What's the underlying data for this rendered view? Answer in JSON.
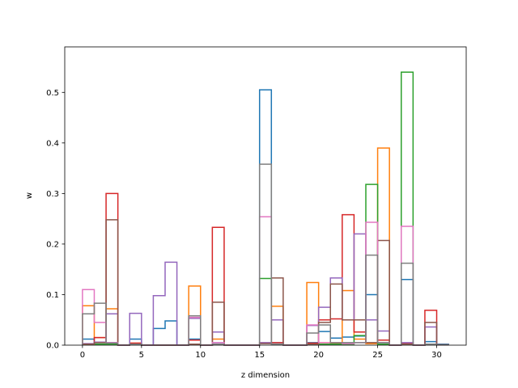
{
  "chart_data": {
    "type": "step",
    "title": "",
    "xlabel": "z dimension",
    "ylabel": "w",
    "xlim": [
      -1.5,
      32.5
    ],
    "ylim": [
      0,
      0.59
    ],
    "xticks": [
      0,
      5,
      10,
      15,
      20,
      25,
      30
    ],
    "yticks": [
      0.0,
      0.1,
      0.2,
      0.3,
      0.4,
      0.5
    ],
    "bin_edges": [
      0,
      1,
      2,
      3,
      4,
      5,
      6,
      7,
      8,
      9,
      10,
      11,
      12,
      13,
      14,
      15,
      16,
      17,
      18,
      19,
      20,
      21,
      22,
      23,
      24,
      25,
      26,
      27,
      28,
      29,
      30,
      31
    ],
    "series": [
      {
        "color": "#1f77b4",
        "values": [
          0.012,
          0.005,
          0.005,
          0,
          0.012,
          0,
          0.033,
          0.048,
          0,
          0.012,
          0,
          0.005,
          0,
          0,
          0,
          0.505,
          0.005,
          0,
          0,
          0.005,
          0.027,
          0.014,
          0.016,
          0.018,
          0.1,
          0.005,
          0,
          0.13,
          0,
          0.007,
          0.002
        ]
      },
      {
        "color": "#ff7f0e",
        "values": [
          0.078,
          0.015,
          0.072,
          0,
          0.004,
          0,
          0,
          0,
          0,
          0.117,
          0,
          0.012,
          0,
          0,
          0,
          0.005,
          0.077,
          0,
          0,
          0.124,
          0.005,
          0.004,
          0.108,
          0.012,
          0.003,
          0.39,
          0,
          0.002,
          0,
          0.002,
          0.001
        ]
      },
      {
        "color": "#2ca02c",
        "values": [
          0.002,
          0.002,
          0.002,
          0,
          0.002,
          0,
          0,
          0,
          0,
          0.002,
          0,
          0.002,
          0,
          0,
          0,
          0.132,
          0.002,
          0,
          0,
          0.002,
          0.002,
          0.002,
          0.002,
          0.019,
          0.318,
          0.002,
          0,
          0.54,
          0,
          0.002,
          0.001
        ]
      },
      {
        "color": "#d62728",
        "values": [
          0.002,
          0.015,
          0.3,
          0,
          0.004,
          0,
          0,
          0,
          0,
          0.01,
          0,
          0.233,
          0,
          0,
          0,
          0.004,
          0.005,
          0,
          0,
          0.004,
          0.05,
          0.052,
          0.258,
          0.026,
          0.05,
          0.01,
          0,
          0.004,
          0,
          0.069,
          0.001
        ]
      },
      {
        "color": "#9467bd",
        "values": [
          0.003,
          0.006,
          0.062,
          0,
          0.063,
          0,
          0.098,
          0.164,
          0,
          0.053,
          0,
          0.026,
          0,
          0,
          0,
          0.005,
          0.05,
          0,
          0,
          0.039,
          0.075,
          0.133,
          0.05,
          0.22,
          0.05,
          0.028,
          0,
          0.005,
          0,
          0.036,
          0.001
        ]
      },
      {
        "color": "#8c564b",
        "values": [
          0.002,
          0.005,
          0.248,
          0,
          0.002,
          0,
          0,
          0,
          0,
          0.002,
          0,
          0.085,
          0,
          0,
          0,
          0.003,
          0.133,
          0,
          0,
          0.002,
          0.045,
          0.121,
          0.05,
          0.05,
          0.005,
          0.207,
          0,
          0.002,
          0,
          0.045,
          0.001
        ]
      },
      {
        "color": "#e377c2",
        "values": [
          0.11,
          0.045,
          0.005,
          0,
          0.002,
          0,
          0,
          0,
          0,
          0.055,
          0,
          0.005,
          0,
          0,
          0,
          0.254,
          0.002,
          0,
          0,
          0.04,
          0.005,
          0.005,
          0.003,
          0.005,
          0.243,
          0.005,
          0,
          0.235,
          0,
          0.002,
          0.001
        ]
      },
      {
        "color": "#7f7f7f",
        "values": [
          0.062,
          0.083,
          0.004,
          0,
          0.002,
          0,
          0,
          0,
          0,
          0.058,
          0,
          0.002,
          0,
          0,
          0,
          0.358,
          0.002,
          0,
          0,
          0.024,
          0.04,
          0.005,
          0.005,
          0.005,
          0.178,
          0.005,
          0,
          0.162,
          0,
          0.002,
          0.001
        ]
      }
    ]
  }
}
